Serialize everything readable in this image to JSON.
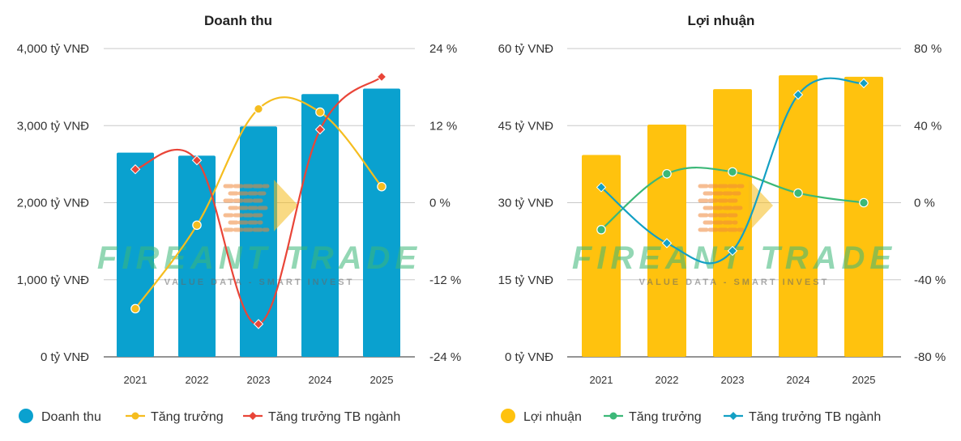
{
  "chart_data": [
    {
      "type": "bar",
      "title": "Doanh thu",
      "categories": [
        "2021",
        "2022",
        "2023",
        "2024",
        "2025"
      ],
      "bar_series": {
        "name": "Doanh thu",
        "values": [
          2650,
          2610,
          2990,
          3410,
          3480
        ],
        "color": "#0aa1cf"
      },
      "line_series": [
        {
          "name": "Tăng trưởng",
          "values": [
            -16.5,
            -3.5,
            14.6,
            14.1,
            2.5
          ],
          "color": "#f5bd1f",
          "marker": "circle"
        },
        {
          "name": "Tăng trưởng TB ngành",
          "values": [
            5.2,
            6.6,
            -18.9,
            11.4,
            19.6
          ],
          "color": "#e94538",
          "marker": "diamond"
        }
      ],
      "ylim_left": [
        0,
        4000
      ],
      "yticks_left": [
        "4,000 tỷ VNĐ",
        "3,000 tỷ VNĐ",
        "2,000 tỷ VNĐ",
        "1,000 tỷ VNĐ",
        "0 tỷ VNĐ"
      ],
      "ylim_right": [
        -24,
        24
      ],
      "yticks_right": [
        "24 %",
        "12 %",
        "0 %",
        "-12 %",
        "-24 %"
      ],
      "legend": [
        {
          "label": "Doanh thu",
          "color": "#0aa1cf",
          "kind": "bar"
        },
        {
          "label": "Tăng trưởng",
          "color": "#f5bd1f",
          "kind": "line-circle"
        },
        {
          "label": "Tăng trưởng TB ngành",
          "color": "#e94538",
          "kind": "line-diamond"
        }
      ]
    },
    {
      "type": "bar",
      "title": "Lợi nhuận",
      "categories": [
        "2021",
        "2022",
        "2023",
        "2024",
        "2025"
      ],
      "bar_series": {
        "name": "Lợi nhuận",
        "values": [
          39.3,
          45.2,
          52.1,
          54.8,
          54.5
        ],
        "color": "#ffc20e"
      },
      "line_series": [
        {
          "name": "Tăng trưởng",
          "values": [
            -14,
            15,
            16,
            5,
            0
          ],
          "color": "#3cb878",
          "marker": "circle"
        },
        {
          "name": "Tăng trưởng TB ngành",
          "values": [
            8,
            -21,
            -25,
            56,
            62
          ],
          "color": "#13a0c4",
          "marker": "diamond"
        }
      ],
      "ylim_left": [
        0,
        60
      ],
      "yticks_left": [
        "60 tỷ VNĐ",
        "45 tỷ VNĐ",
        "30 tỷ VNĐ",
        "15 tỷ VNĐ",
        "0 tỷ VNĐ"
      ],
      "ylim_right": [
        -80,
        80
      ],
      "yticks_right": [
        "80 %",
        "40 %",
        "0 %",
        "-40 %",
        "-80 %"
      ],
      "legend": [
        {
          "label": "Lợi nhuận",
          "color": "#ffc20e",
          "kind": "bar"
        },
        {
          "label": "Tăng trưởng",
          "color": "#3cb878",
          "kind": "line-circle"
        },
        {
          "label": "Tăng trưởng TB ngành",
          "color": "#13a0c4",
          "kind": "line-diamond"
        }
      ]
    }
  ],
  "watermark": {
    "brand": "FIREANT TRADE",
    "tagline": "VALUE DATA - SMART INVEST",
    "colors": [
      "#f0883a",
      "#3cb878"
    ]
  }
}
